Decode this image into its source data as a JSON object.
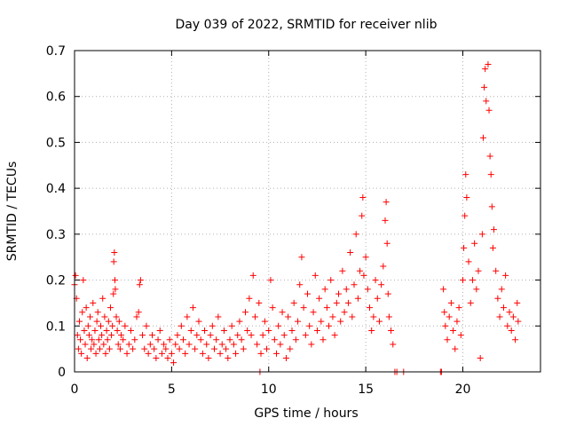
{
  "chart_data": {
    "type": "scatter",
    "title": "Day 039 of 2022, SRMTID for receiver nlib",
    "xlabel": "GPS time / hours",
    "ylabel": "SRMTID / TECUs",
    "xlim": [
      0,
      24
    ],
    "ylim": [
      0,
      0.7
    ],
    "x_ticks": [
      0,
      5,
      10,
      15,
      20
    ],
    "x_tick_labels": [
      "0",
      "5",
      "10",
      "15",
      "20"
    ],
    "y_ticks": [
      0,
      0.1,
      0.2,
      0.3,
      0.4,
      0.5,
      0.6,
      0.7
    ],
    "y_tick_labels": [
      "0",
      "0.1",
      "0.2",
      "0.3",
      "0.4",
      "0.5",
      "0.6",
      "0.7"
    ],
    "grid": true,
    "marker": "+",
    "color": "#ff0000",
    "series": [
      {
        "name": "SRMTID",
        "points": [
          [
            0.0,
            0.19
          ],
          [
            0.05,
            0.21
          ],
          [
            0.1,
            0.16
          ],
          [
            0.15,
            0.08
          ],
          [
            0.2,
            0.05
          ],
          [
            0.25,
            0.11
          ],
          [
            0.3,
            0.07
          ],
          [
            0.35,
            0.04
          ],
          [
            0.4,
            0.13
          ],
          [
            0.45,
            0.2
          ],
          [
            0.5,
            0.09
          ],
          [
            0.55,
            0.06
          ],
          [
            0.6,
            0.14
          ],
          [
            0.65,
            0.03
          ],
          [
            0.7,
            0.1
          ],
          [
            0.75,
            0.08
          ],
          [
            0.8,
            0.12
          ],
          [
            0.85,
            0.05
          ],
          [
            0.9,
            0.07
          ],
          [
            0.95,
            0.15
          ],
          [
            1.0,
            0.06
          ],
          [
            1.05,
            0.09
          ],
          [
            1.1,
            0.04
          ],
          [
            1.15,
            0.11
          ],
          [
            1.2,
            0.13
          ],
          [
            1.25,
            0.07
          ],
          [
            1.3,
            0.05
          ],
          [
            1.35,
            0.1
          ],
          [
            1.4,
            0.08
          ],
          [
            1.45,
            0.16
          ],
          [
            1.5,
            0.06
          ],
          [
            1.55,
            0.12
          ],
          [
            1.6,
            0.04
          ],
          [
            1.65,
            0.09
          ],
          [
            1.7,
            0.07
          ],
          [
            1.75,
            0.11
          ],
          [
            1.8,
            0.05
          ],
          [
            1.85,
            0.14
          ],
          [
            1.9,
            0.08
          ],
          [
            1.95,
            0.1
          ],
          [
            2.0,
            0.17
          ],
          [
            2.02,
            0.24
          ],
          [
            2.05,
            0.26
          ],
          [
            2.08,
            0.2
          ],
          [
            2.1,
            0.18
          ],
          [
            2.15,
            0.12
          ],
          [
            2.2,
            0.09
          ],
          [
            2.25,
            0.06
          ],
          [
            2.3,
            0.11
          ],
          [
            2.35,
            0.05
          ],
          [
            2.4,
            0.08
          ],
          [
            2.5,
            0.07
          ],
          [
            2.6,
            0.1
          ],
          [
            2.7,
            0.04
          ],
          [
            2.8,
            0.06
          ],
          [
            2.9,
            0.09
          ],
          [
            3.0,
            0.05
          ],
          [
            3.1,
            0.07
          ],
          [
            3.2,
            0.12
          ],
          [
            3.3,
            0.13
          ],
          [
            3.35,
            0.19
          ],
          [
            3.4,
            0.2
          ],
          [
            3.5,
            0.08
          ],
          [
            3.6,
            0.05
          ],
          [
            3.7,
            0.1
          ],
          [
            3.8,
            0.04
          ],
          [
            3.9,
            0.06
          ],
          [
            4.0,
            0.08
          ],
          [
            4.1,
            0.05
          ],
          [
            4.2,
            0.03
          ],
          [
            4.3,
            0.07
          ],
          [
            4.4,
            0.09
          ],
          [
            4.5,
            0.04
          ],
          [
            4.6,
            0.06
          ],
          [
            4.7,
            0.05
          ],
          [
            4.8,
            0.03
          ],
          [
            4.9,
            0.07
          ],
          [
            5.0,
            0.04
          ],
          [
            5.1,
            0.02
          ],
          [
            5.2,
            0.06
          ],
          [
            5.3,
            0.08
          ],
          [
            5.4,
            0.05
          ],
          [
            5.5,
            0.1
          ],
          [
            5.6,
            0.07
          ],
          [
            5.7,
            0.04
          ],
          [
            5.8,
            0.12
          ],
          [
            5.9,
            0.06
          ],
          [
            6.0,
            0.09
          ],
          [
            6.1,
            0.14
          ],
          [
            6.2,
            0.05
          ],
          [
            6.3,
            0.08
          ],
          [
            6.4,
            0.11
          ],
          [
            6.5,
            0.07
          ],
          [
            6.6,
            0.04
          ],
          [
            6.7,
            0.09
          ],
          [
            6.8,
            0.06
          ],
          [
            6.9,
            0.03
          ],
          [
            7.0,
            0.08
          ],
          [
            7.1,
            0.1
          ],
          [
            7.2,
            0.05
          ],
          [
            7.3,
            0.07
          ],
          [
            7.4,
            0.12
          ],
          [
            7.5,
            0.04
          ],
          [
            7.6,
            0.06
          ],
          [
            7.7,
            0.09
          ],
          [
            7.8,
            0.05
          ],
          [
            7.9,
            0.03
          ],
          [
            8.0,
            0.07
          ],
          [
            8.1,
            0.1
          ],
          [
            8.2,
            0.06
          ],
          [
            8.3,
            0.04
          ],
          [
            8.4,
            0.08
          ],
          [
            8.5,
            0.11
          ],
          [
            8.6,
            0.07
          ],
          [
            8.7,
            0.05
          ],
          [
            8.8,
            0.13
          ],
          [
            8.9,
            0.09
          ],
          [
            9.0,
            0.16
          ],
          [
            9.1,
            0.08
          ],
          [
            9.2,
            0.21
          ],
          [
            9.3,
            0.12
          ],
          [
            9.4,
            0.06
          ],
          [
            9.5,
            0.15
          ],
          [
            9.55,
            0.0
          ],
          [
            9.6,
            0.04
          ],
          [
            9.7,
            0.08
          ],
          [
            9.8,
            0.11
          ],
          [
            9.9,
            0.05
          ],
          [
            10.0,
            0.09
          ],
          [
            10.1,
            0.2
          ],
          [
            10.2,
            0.14
          ],
          [
            10.3,
            0.07
          ],
          [
            10.4,
            0.04
          ],
          [
            10.5,
            0.1
          ],
          [
            10.6,
            0.06
          ],
          [
            10.7,
            0.13
          ],
          [
            10.8,
            0.08
          ],
          [
            10.9,
            0.03
          ],
          [
            11.0,
            0.12
          ],
          [
            11.1,
            0.05
          ],
          [
            11.2,
            0.09
          ],
          [
            11.3,
            0.15
          ],
          [
            11.4,
            0.07
          ],
          [
            11.5,
            0.11
          ],
          [
            11.6,
            0.19
          ],
          [
            11.7,
            0.25
          ],
          [
            11.8,
            0.14
          ],
          [
            11.9,
            0.08
          ],
          [
            12.0,
            0.17
          ],
          [
            12.1,
            0.1
          ],
          [
            12.2,
            0.06
          ],
          [
            12.3,
            0.13
          ],
          [
            12.4,
            0.21
          ],
          [
            12.5,
            0.09
          ],
          [
            12.6,
            0.16
          ],
          [
            12.7,
            0.11
          ],
          [
            12.8,
            0.07
          ],
          [
            12.9,
            0.18
          ],
          [
            13.0,
            0.14
          ],
          [
            13.1,
            0.1
          ],
          [
            13.2,
            0.2
          ],
          [
            13.3,
            0.12
          ],
          [
            13.4,
            0.08
          ],
          [
            13.5,
            0.15
          ],
          [
            13.6,
            0.17
          ],
          [
            13.7,
            0.11
          ],
          [
            13.8,
            0.22
          ],
          [
            13.9,
            0.13
          ],
          [
            14.0,
            0.18
          ],
          [
            14.1,
            0.15
          ],
          [
            14.2,
            0.26
          ],
          [
            14.3,
            0.12
          ],
          [
            14.4,
            0.19
          ],
          [
            14.5,
            0.3
          ],
          [
            14.6,
            0.16
          ],
          [
            14.7,
            0.22
          ],
          [
            14.8,
            0.34
          ],
          [
            14.85,
            0.38
          ],
          [
            14.9,
            0.21
          ],
          [
            15.0,
            0.25
          ],
          [
            15.1,
            0.18
          ],
          [
            15.2,
            0.14
          ],
          [
            15.3,
            0.09
          ],
          [
            15.4,
            0.12
          ],
          [
            15.5,
            0.2
          ],
          [
            15.6,
            0.16
          ],
          [
            15.7,
            0.11
          ],
          [
            15.8,
            0.19
          ],
          [
            15.9,
            0.23
          ],
          [
            16.0,
            0.33
          ],
          [
            16.05,
            0.37
          ],
          [
            16.1,
            0.28
          ],
          [
            16.15,
            0.17
          ],
          [
            16.2,
            0.12
          ],
          [
            16.3,
            0.09
          ],
          [
            16.4,
            0.06
          ],
          [
            16.5,
            0.0
          ],
          [
            16.6,
            0.0
          ],
          [
            16.95,
            0.0
          ],
          [
            18.85,
            0.0
          ],
          [
            18.9,
            0.0
          ],
          [
            19.0,
            0.18
          ],
          [
            19.05,
            0.13
          ],
          [
            19.1,
            0.1
          ],
          [
            19.2,
            0.07
          ],
          [
            19.3,
            0.12
          ],
          [
            19.4,
            0.15
          ],
          [
            19.5,
            0.09
          ],
          [
            19.6,
            0.05
          ],
          [
            19.7,
            0.11
          ],
          [
            19.8,
            0.14
          ],
          [
            19.9,
            0.08
          ],
          [
            20.0,
            0.2
          ],
          [
            20.05,
            0.27
          ],
          [
            20.1,
            0.34
          ],
          [
            20.15,
            0.43
          ],
          [
            20.2,
            0.38
          ],
          [
            20.3,
            0.24
          ],
          [
            20.4,
            0.15
          ],
          [
            20.5,
            0.2
          ],
          [
            20.6,
            0.28
          ],
          [
            20.7,
            0.18
          ],
          [
            20.8,
            0.22
          ],
          [
            20.9,
            0.03
          ],
          [
            21.0,
            0.3
          ],
          [
            21.05,
            0.51
          ],
          [
            21.1,
            0.62
          ],
          [
            21.15,
            0.66
          ],
          [
            21.2,
            0.59
          ],
          [
            21.3,
            0.67
          ],
          [
            21.35,
            0.57
          ],
          [
            21.4,
            0.47
          ],
          [
            21.45,
            0.43
          ],
          [
            21.5,
            0.36
          ],
          [
            21.55,
            0.27
          ],
          [
            21.6,
            0.31
          ],
          [
            21.7,
            0.22
          ],
          [
            21.8,
            0.16
          ],
          [
            21.9,
            0.12
          ],
          [
            22.0,
            0.18
          ],
          [
            22.1,
            0.14
          ],
          [
            22.2,
            0.21
          ],
          [
            22.3,
            0.1
          ],
          [
            22.4,
            0.13
          ],
          [
            22.5,
            0.09
          ],
          [
            22.6,
            0.12
          ],
          [
            22.7,
            0.07
          ],
          [
            22.8,
            0.15
          ],
          [
            22.85,
            0.11
          ]
        ]
      }
    ]
  }
}
